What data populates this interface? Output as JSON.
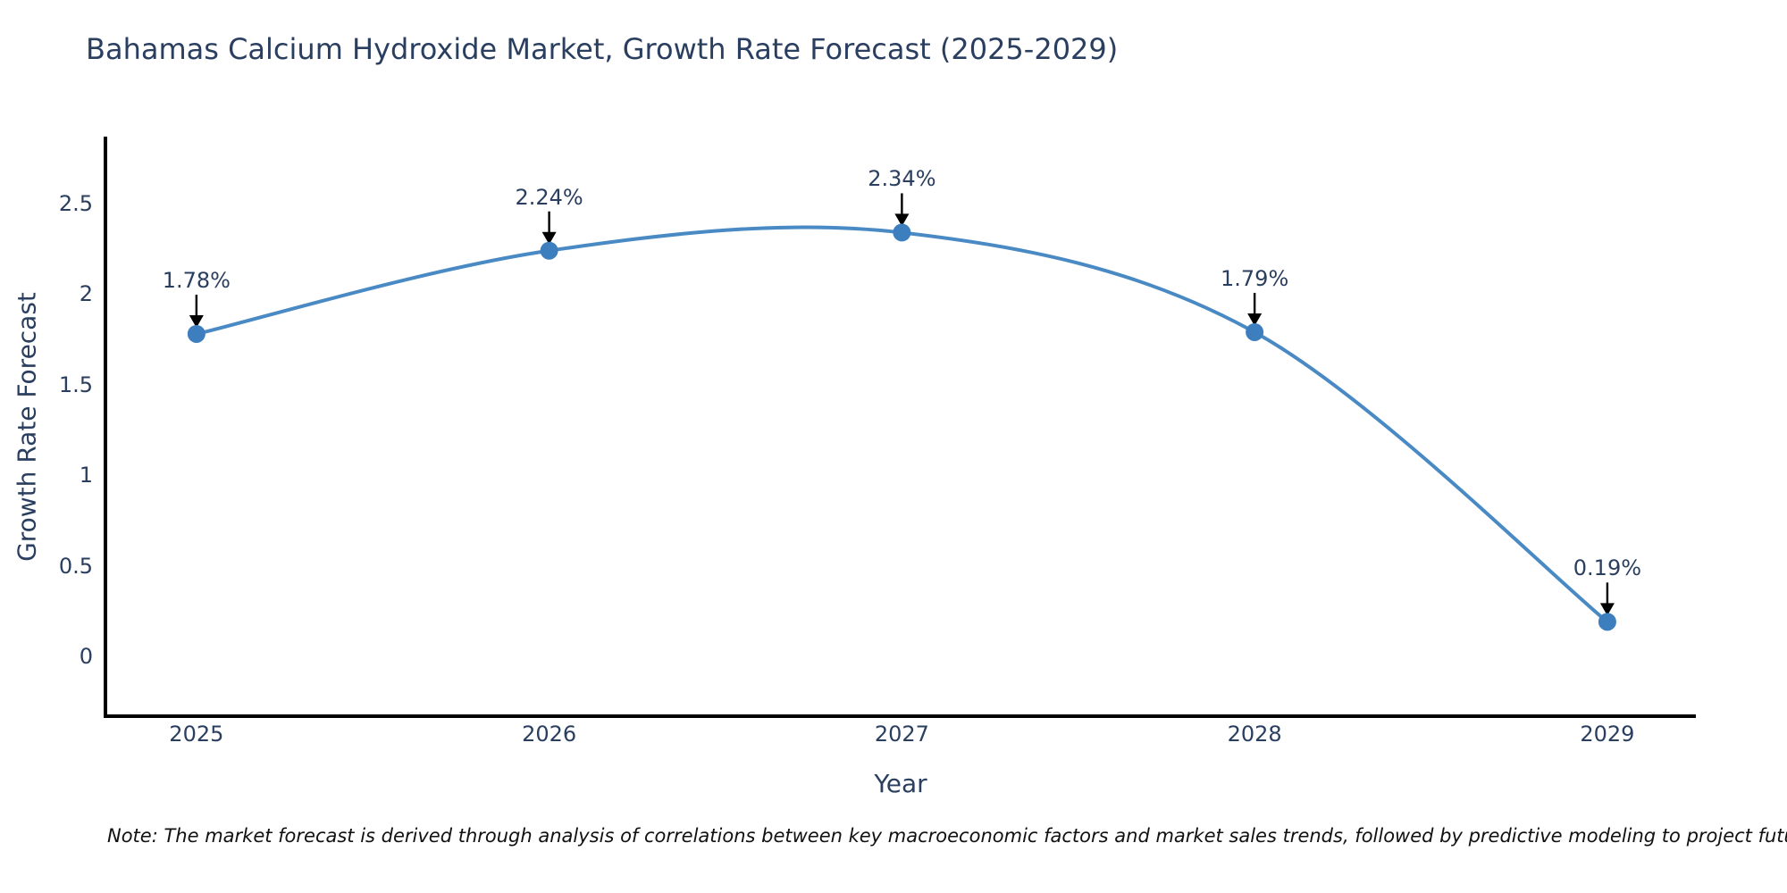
{
  "note": "Note: The market forecast is derived through analysis of correlations between key macroeconomic factors and market sales trends, followed by predictive modeling to project future sales",
  "chart_data": {
    "type": "line",
    "title": "Bahamas Calcium Hydroxide Market, Growth Rate Forecast (2025-2029)",
    "xlabel": "Year",
    "ylabel": "Growth Rate Forecast",
    "x": [
      2025,
      2026,
      2027,
      2028,
      2029
    ],
    "x_tick_labels": [
      "2025",
      "2026",
      "2027",
      "2028",
      "2029"
    ],
    "series": [
      {
        "name": "Growth Rate Forecast",
        "values": [
          1.78,
          2.24,
          2.34,
          1.79,
          0.19
        ]
      }
    ],
    "point_labels": [
      "1.78%",
      "2.24%",
      "2.34%",
      "1.79%",
      "0.19%"
    ],
    "y_ticks": {
      "values": [
        0,
        0.5,
        1,
        1.5,
        2,
        2.5
      ],
      "labels": [
        "0",
        "0.5",
        "1",
        "1.5",
        "2",
        "2.5"
      ]
    },
    "xlim": [
      2024.742,
      2029.251
    ],
    "ylim": [
      -0.331,
      2.86
    ],
    "line_shape": "spline",
    "grid": false,
    "legend_position": "none",
    "annotation_style": "down-arrow",
    "colors": {
      "line": "#4a8ac4",
      "marker": "#3d7ebf",
      "axis": "#000000",
      "arrow": "#000000",
      "text": "#2a3f5f",
      "note_text": "#111111"
    }
  }
}
